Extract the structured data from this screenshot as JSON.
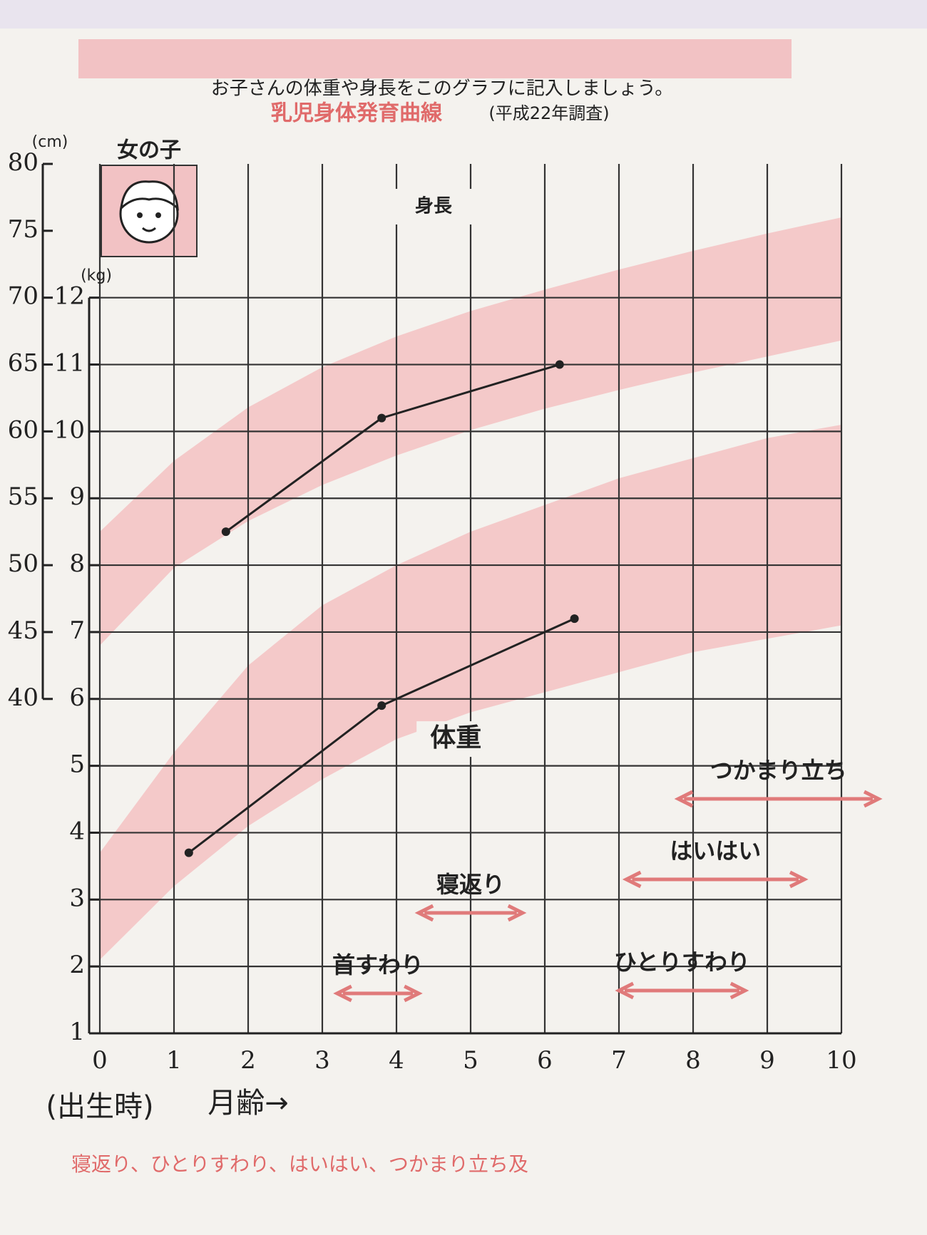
{
  "chart_data": {
    "type": "line",
    "header": "お子さんの体重や身長をこのグラフに記入しましょう。",
    "title": "乳児身体発育曲線",
    "subtitle": "(平成22年調査)",
    "panel_label": "女の子",
    "xlabel_origin": "(出生時)",
    "xlabel": "月齢→",
    "ylabel": "(kg)",
    "y2label": "(cm)",
    "footer_note": "寝返り、ひとりすわり、はいはい、つかまり立ち及",
    "xlim": [
      0,
      10
    ],
    "xticks": [
      0,
      1,
      2,
      3,
      4,
      5,
      6,
      7,
      8,
      9,
      10
    ],
    "ylim": [
      1,
      14
    ],
    "yticks": [
      1,
      2,
      3,
      4,
      5,
      6,
      7,
      8,
      9,
      10,
      11,
      12
    ],
    "y2lim": [
      15,
      80
    ],
    "y2ticks": [
      40,
      45,
      50,
      55,
      60,
      65,
      70,
      75,
      80
    ],
    "grid": true,
    "bands": [
      {
        "axis": "y2",
        "color": "#f4c9c9",
        "x": [
          0,
          1,
          2,
          3,
          4,
          5,
          6,
          7,
          8,
          9,
          10
        ],
        "lower": [
          44.0,
          49.8,
          53.3,
          56.0,
          58.2,
          60.1,
          61.7,
          63.1,
          64.4,
          65.6,
          66.8
        ],
        "upper": [
          52.5,
          57.8,
          61.8,
          64.8,
          67.1,
          69.0,
          70.6,
          72.1,
          73.5,
          74.8,
          76.0
        ]
      },
      {
        "axis": "y",
        "color": "#f4c9c9",
        "x": [
          0,
          1,
          2,
          3,
          4,
          5,
          6,
          7,
          8,
          9,
          10
        ],
        "lower": [
          2.1,
          3.2,
          4.1,
          4.8,
          5.4,
          5.8,
          6.1,
          6.4,
          6.7,
          6.9,
          7.1
        ],
        "upper": [
          3.7,
          5.2,
          6.5,
          7.4,
          8.0,
          8.5,
          8.9,
          9.3,
          9.6,
          9.9,
          10.1
        ]
      }
    ],
    "series": [
      {
        "name": "身長",
        "axis": "y2",
        "color": "#222222",
        "x": [
          1.7,
          3.8,
          6.2
        ],
        "values": [
          52.5,
          61,
          65
        ]
      },
      {
        "name": "体重",
        "axis": "y",
        "color": "#222222",
        "x": [
          1.2,
          3.8,
          6.4
        ],
        "values": [
          3.7,
          5.9,
          7.2
        ]
      }
    ],
    "milestones": [
      {
        "label": "首すわり",
        "months": [
          3.2,
          4.3
        ],
        "color": "#e07a7a"
      },
      {
        "label": "寝返り",
        "months": [
          4.3,
          5.7
        ],
        "color": "#e07a7a"
      },
      {
        "label": "はいはい",
        "months": [
          7.1,
          9.5
        ],
        "color": "#e07a7a"
      },
      {
        "label": "ひとりすわり",
        "months": [
          7.0,
          8.7
        ],
        "color": "#e07a7a"
      },
      {
        "label": "つかまり立ち",
        "months": [
          7.8,
          10.5
        ],
        "color": "#e07a7a"
      }
    ]
  }
}
